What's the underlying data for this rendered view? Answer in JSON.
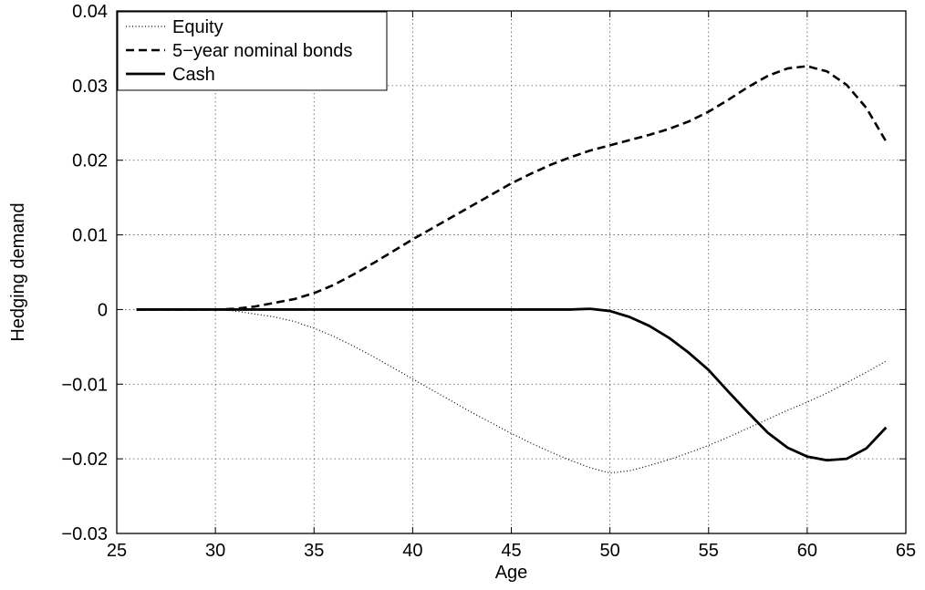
{
  "chart_data": {
    "type": "line",
    "title": "",
    "xlabel": "Age",
    "ylabel": "Hedging demand",
    "xlim": [
      25,
      65
    ],
    "ylim": [
      -0.03,
      0.04
    ],
    "x_ticks": [
      "25",
      "30",
      "35",
      "40",
      "45",
      "50",
      "55",
      "60",
      "65"
    ],
    "y_ticks": [
      "−0.03",
      "−0.02",
      "−0.01",
      "0",
      "0.01",
      "0.02",
      "0.03",
      "0.04"
    ],
    "grid": true,
    "legend_position": "top-left",
    "x": [
      26,
      27,
      28,
      29,
      30,
      31,
      32,
      33,
      34,
      35,
      36,
      37,
      38,
      39,
      40,
      41,
      42,
      43,
      44,
      45,
      46,
      47,
      48,
      49,
      50,
      51,
      52,
      53,
      54,
      55,
      56,
      57,
      58,
      59,
      60,
      61,
      62,
      63,
      64
    ],
    "series": [
      {
        "name": "Equity",
        "style": "dotted",
        "color": "#000000",
        "values": [
          0,
          0,
          0,
          0,
          0,
          -0.0002,
          -0.0006,
          -0.001,
          -0.0016,
          -0.0025,
          -0.0036,
          -0.0049,
          -0.0063,
          -0.0078,
          -0.0093,
          -0.0108,
          -0.0123,
          -0.0138,
          -0.0152,
          -0.0166,
          -0.0179,
          -0.0191,
          -0.0202,
          -0.0212,
          -0.0219,
          -0.0216,
          -0.0209,
          -0.0201,
          -0.0192,
          -0.0182,
          -0.0171,
          -0.0159,
          -0.0147,
          -0.0135,
          -0.0124,
          -0.0112,
          -0.0098,
          -0.0084,
          -0.0069
        ]
      },
      {
        "name": "5−year nominal bonds",
        "style": "dashed",
        "color": "#000000",
        "values": [
          0,
          0,
          0,
          0,
          0,
          0.0001,
          0.0004,
          0.0009,
          0.0014,
          0.0022,
          0.0033,
          0.0047,
          0.0062,
          0.0078,
          0.0094,
          0.0109,
          0.0124,
          0.0139,
          0.0154,
          0.0169,
          0.0182,
          0.0194,
          0.0204,
          0.0213,
          0.022,
          0.0227,
          0.0234,
          0.0242,
          0.0252,
          0.0265,
          0.0281,
          0.0298,
          0.0313,
          0.0323,
          0.0326,
          0.0319,
          0.0301,
          0.027,
          0.0225
        ]
      },
      {
        "name": "Cash",
        "style": "solid",
        "color": "#000000",
        "values": [
          0,
          0,
          0,
          0,
          0,
          0,
          0,
          0,
          0,
          0,
          0,
          0,
          0,
          0,
          0,
          0,
          0,
          0,
          0,
          0,
          0,
          0,
          0,
          0.0001,
          -0.0002,
          -0.001,
          -0.0022,
          -0.0038,
          -0.0058,
          -0.0081,
          -0.011,
          -0.0138,
          -0.0165,
          -0.0185,
          -0.0197,
          -0.0202,
          -0.02,
          -0.0186,
          -0.0158
        ]
      }
    ]
  }
}
